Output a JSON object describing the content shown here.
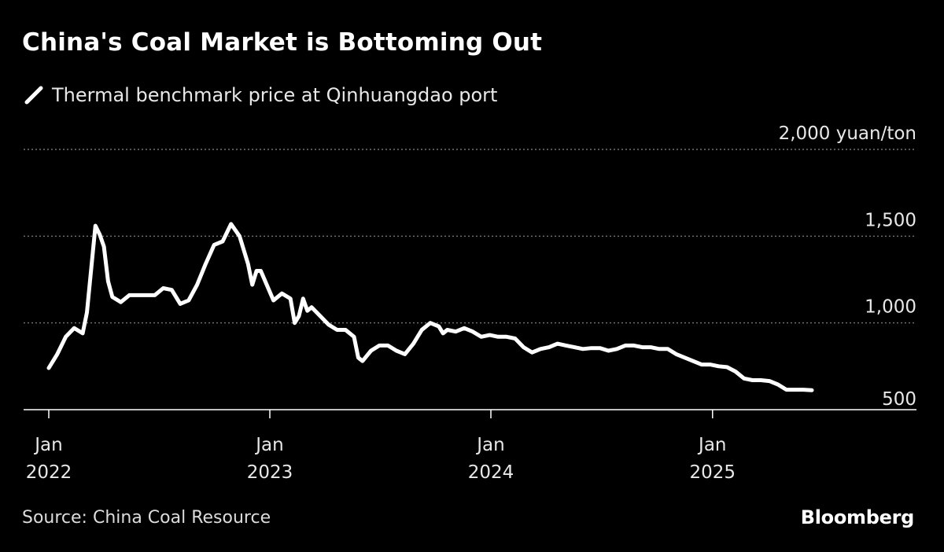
{
  "header": {
    "title": "China's Coal Market is Bottoming Out",
    "legend_label": "Thermal benchmark price at Qinhuangdao port"
  },
  "footer": {
    "source": "Source: China Coal Resource",
    "brand": "Bloomberg"
  },
  "colors": {
    "background": "#000000",
    "line": "#ffffff",
    "grid": "#8a8a8a",
    "text": "#ffffff"
  },
  "chart_data": {
    "type": "line",
    "grid": true,
    "y_axis_side": "right",
    "ylim": [
      500,
      2000
    ],
    "y_ticks": [
      {
        "value": 500,
        "label": "500"
      },
      {
        "value": 1000,
        "label": "1,000"
      },
      {
        "value": 1500,
        "label": "1,500"
      },
      {
        "value": 2000,
        "label": "2,000 yuan/ton"
      }
    ],
    "x_ticks": [
      {
        "value": "2022-01",
        "line1": "Jan",
        "line2": "2022"
      },
      {
        "value": "2023-01",
        "line1": "Jan",
        "line2": "2023"
      },
      {
        "value": "2024-01",
        "line1": "Jan",
        "line2": "2024"
      },
      {
        "value": "2025-01",
        "line1": "Jan",
        "line2": "2025"
      }
    ],
    "x_start": "2022-01-01",
    "x_end": "2025-09-30",
    "series": [
      {
        "name": "Thermal benchmark price at Qinhuangdao port",
        "points": [
          [
            "2022-01-01",
            740
          ],
          [
            "2022-01-15",
            820
          ],
          [
            "2022-01-29",
            920
          ],
          [
            "2022-02-12",
            970
          ],
          [
            "2022-02-26",
            940
          ],
          [
            "2022-03-05",
            1060
          ],
          [
            "2022-03-19",
            1560
          ],
          [
            "2022-03-26",
            1510
          ],
          [
            "2022-04-02",
            1440
          ],
          [
            "2022-04-09",
            1240
          ],
          [
            "2022-04-16",
            1150
          ],
          [
            "2022-04-30",
            1120
          ],
          [
            "2022-05-14",
            1160
          ],
          [
            "2022-05-28",
            1160
          ],
          [
            "2022-06-11",
            1160
          ],
          [
            "2022-06-25",
            1160
          ],
          [
            "2022-07-09",
            1200
          ],
          [
            "2022-07-23",
            1190
          ],
          [
            "2022-08-06",
            1110
          ],
          [
            "2022-08-20",
            1130
          ],
          [
            "2022-09-03",
            1220
          ],
          [
            "2022-09-17",
            1340
          ],
          [
            "2022-10-01",
            1450
          ],
          [
            "2022-10-15",
            1470
          ],
          [
            "2022-10-29",
            1570
          ],
          [
            "2022-11-12",
            1500
          ],
          [
            "2022-11-26",
            1340
          ],
          [
            "2022-12-03",
            1220
          ],
          [
            "2022-12-10",
            1300
          ],
          [
            "2022-12-17",
            1300
          ],
          [
            "2023-01-07",
            1130
          ],
          [
            "2023-01-21",
            1170
          ],
          [
            "2023-02-04",
            1140
          ],
          [
            "2023-02-11",
            1000
          ],
          [
            "2023-02-18",
            1040
          ],
          [
            "2023-02-25",
            1140
          ],
          [
            "2023-03-04",
            1070
          ],
          [
            "2023-03-11",
            1090
          ],
          [
            "2023-03-25",
            1040
          ],
          [
            "2023-04-08",
            990
          ],
          [
            "2023-04-22",
            960
          ],
          [
            "2023-05-06",
            960
          ],
          [
            "2023-05-20",
            920
          ],
          [
            "2023-05-27",
            800
          ],
          [
            "2023-06-03",
            780
          ],
          [
            "2023-06-17",
            840
          ],
          [
            "2023-07-01",
            870
          ],
          [
            "2023-07-15",
            870
          ],
          [
            "2023-07-29",
            840
          ],
          [
            "2023-08-12",
            820
          ],
          [
            "2023-08-26",
            880
          ],
          [
            "2023-09-09",
            960
          ],
          [
            "2023-09-23",
            1000
          ],
          [
            "2023-10-07",
            980
          ],
          [
            "2023-10-14",
            940
          ],
          [
            "2023-10-21",
            960
          ],
          [
            "2023-11-04",
            950
          ],
          [
            "2023-11-18",
            970
          ],
          [
            "2023-12-02",
            950
          ],
          [
            "2023-12-16",
            920
          ],
          [
            "2023-12-30",
            930
          ],
          [
            "2024-01-13",
            920
          ],
          [
            "2024-01-27",
            920
          ],
          [
            "2024-02-10",
            910
          ],
          [
            "2024-02-24",
            860
          ],
          [
            "2024-03-09",
            830
          ],
          [
            "2024-03-23",
            850
          ],
          [
            "2024-04-06",
            860
          ],
          [
            "2024-04-20",
            880
          ],
          [
            "2024-05-04",
            870
          ],
          [
            "2024-05-18",
            860
          ],
          [
            "2024-06-01",
            850
          ],
          [
            "2024-06-15",
            855
          ],
          [
            "2024-06-29",
            855
          ],
          [
            "2024-07-13",
            840
          ],
          [
            "2024-07-27",
            850
          ],
          [
            "2024-08-10",
            870
          ],
          [
            "2024-08-24",
            870
          ],
          [
            "2024-09-07",
            860
          ],
          [
            "2024-09-21",
            860
          ],
          [
            "2024-10-05",
            850
          ],
          [
            "2024-10-19",
            850
          ],
          [
            "2024-11-02",
            820
          ],
          [
            "2024-11-16",
            800
          ],
          [
            "2024-11-30",
            780
          ],
          [
            "2024-12-14",
            760
          ],
          [
            "2024-12-28",
            760
          ],
          [
            "2025-01-11",
            750
          ],
          [
            "2025-01-25",
            745
          ],
          [
            "2025-02-08",
            720
          ],
          [
            "2025-02-22",
            680
          ],
          [
            "2025-03-08",
            670
          ],
          [
            "2025-03-22",
            670
          ],
          [
            "2025-04-05",
            665
          ],
          [
            "2025-04-19",
            645
          ],
          [
            "2025-05-03",
            615
          ],
          [
            "2025-05-17",
            615
          ],
          [
            "2025-05-31",
            615
          ],
          [
            "2025-06-14",
            612
          ]
        ]
      }
    ]
  }
}
